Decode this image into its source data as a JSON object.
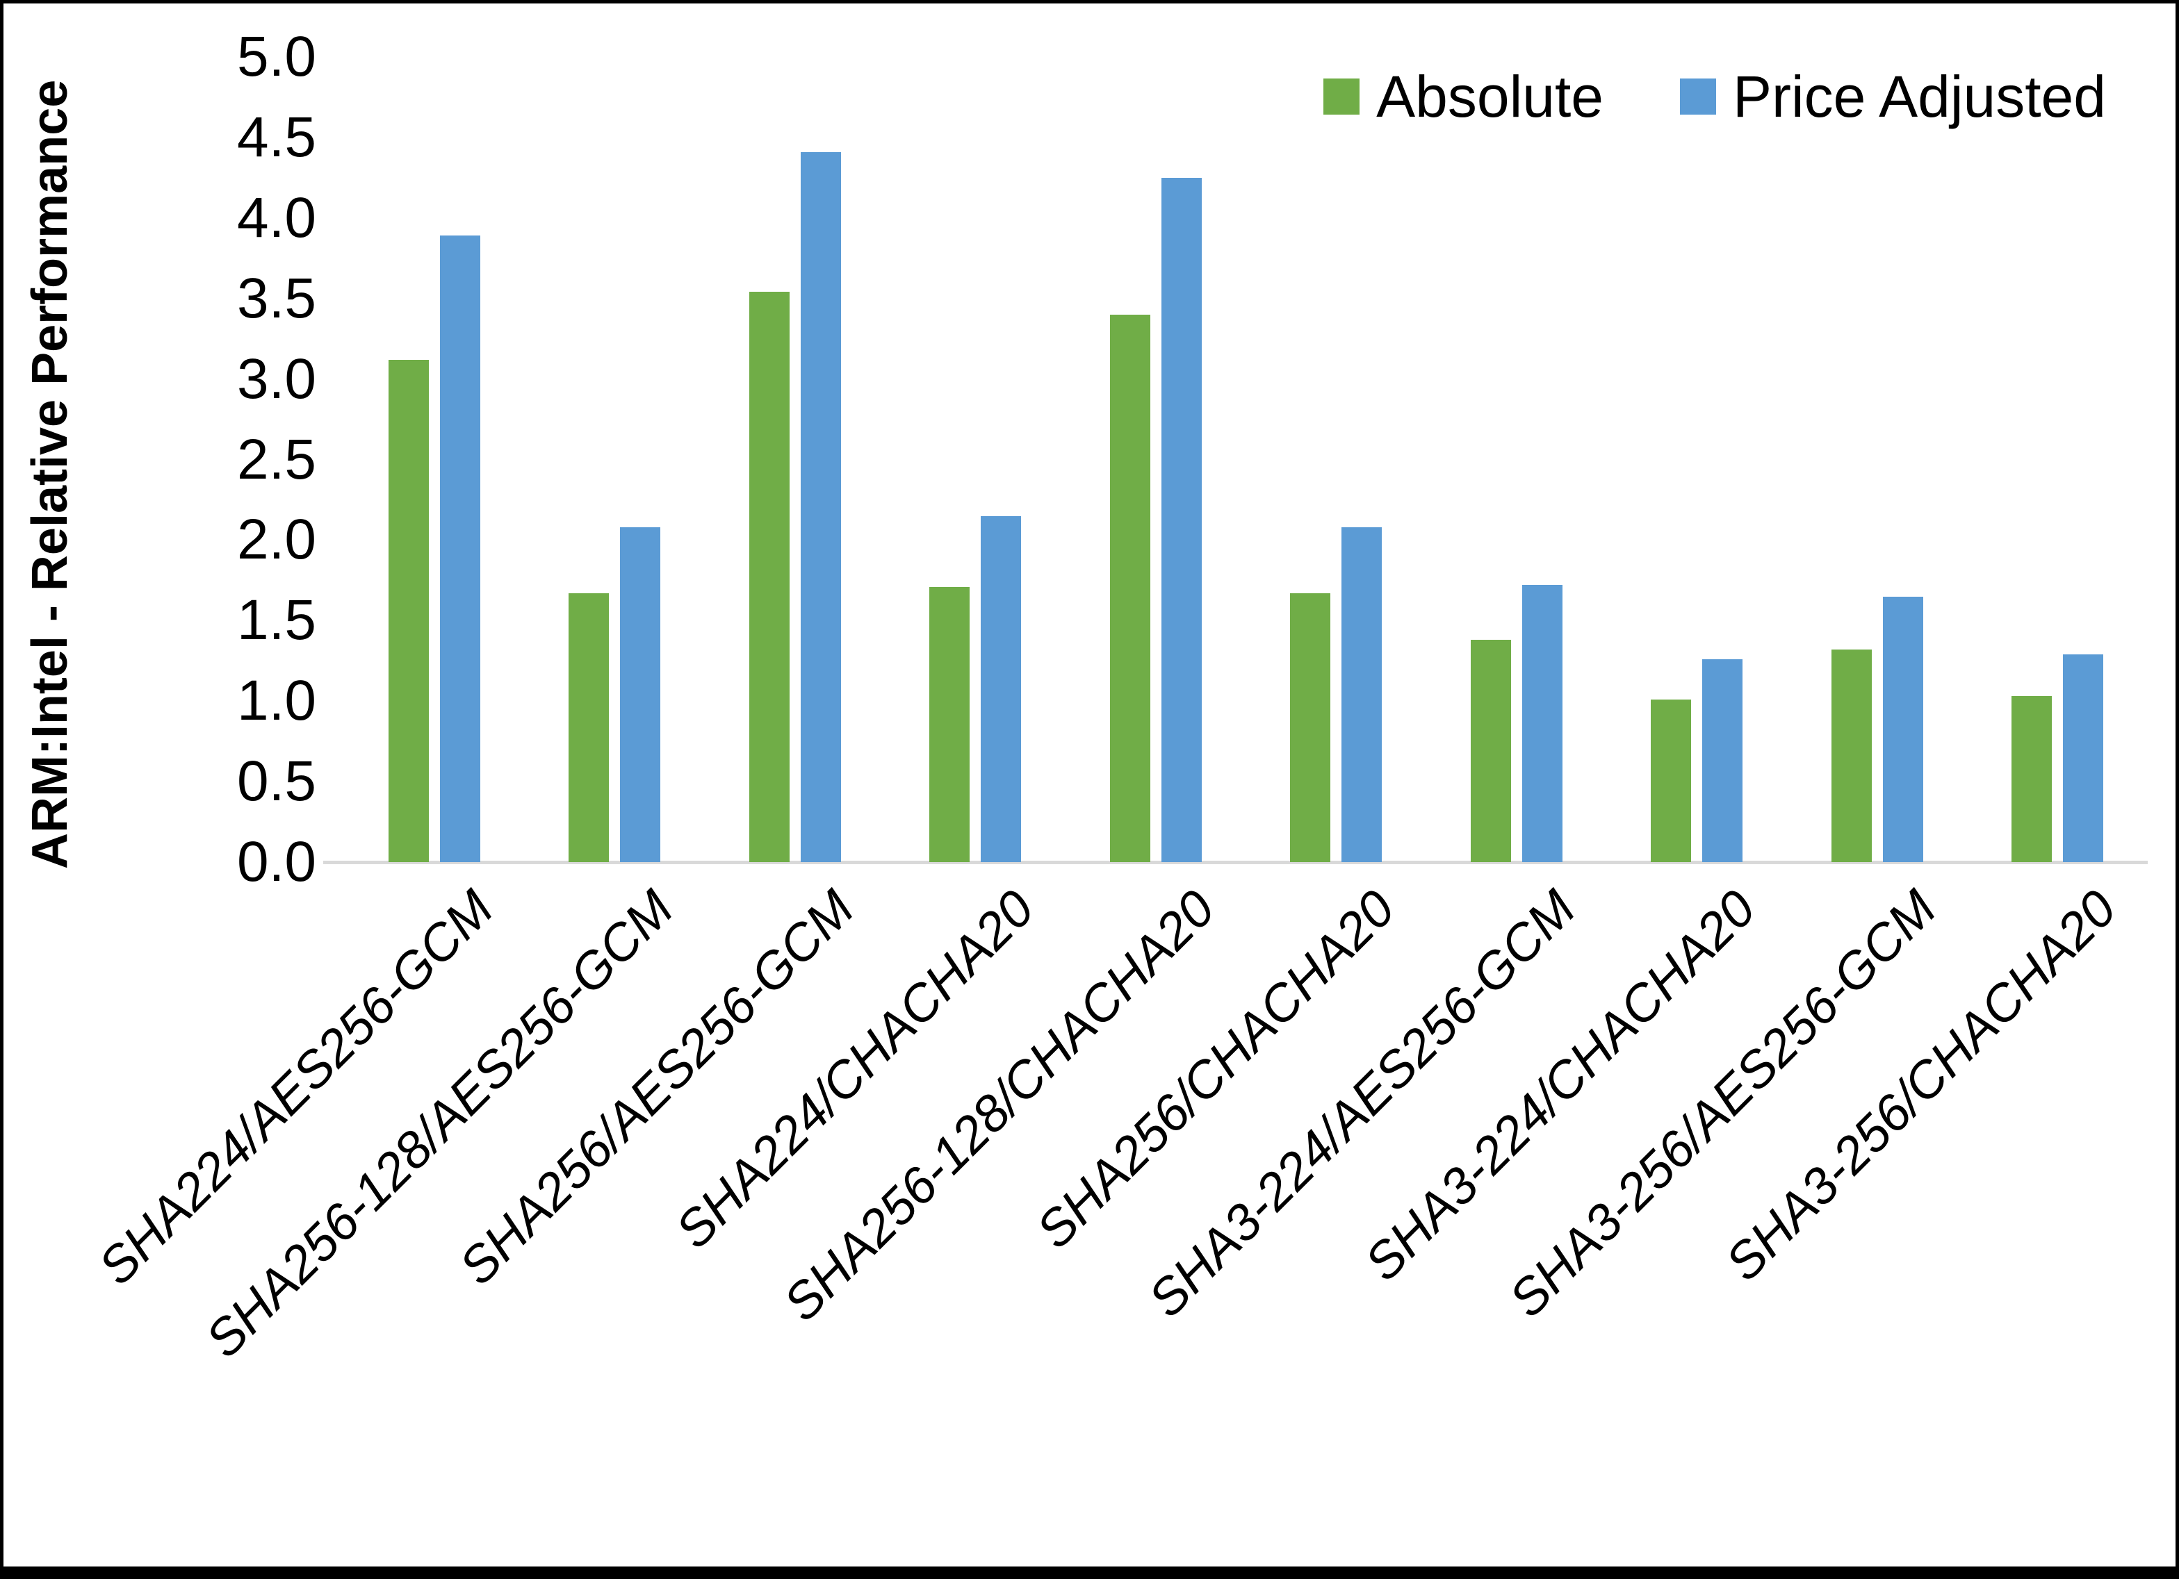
{
  "chart_data": {
    "type": "bar",
    "title": "",
    "xlabel": "",
    "ylabel": "ARM:Intel - Relative Performance",
    "ylim": [
      0,
      5
    ],
    "ytick_step": 0.5,
    "ytick_decimals": 1,
    "grid": false,
    "legend_position": "top-right",
    "categories": [
      "SHA224/AES256-GCM",
      "SHA256-128/AES256-GCM",
      "SHA256/AES256-GCM",
      "SHA224/CHACHA20",
      "SHA256-128/CHACHA20",
      "SHA256/CHACHA20",
      "SHA3-224/AES256-GCM",
      "SHA3-224/CHACHA20",
      "SHA3-256/AES256-GCM",
      "SHA3-256/CHACHA20"
    ],
    "series": [
      {
        "name": "Absolute",
        "color": "#70AD47",
        "values": [
          3.12,
          1.67,
          3.54,
          1.71,
          3.4,
          1.67,
          1.38,
          1.01,
          1.32,
          1.03
        ]
      },
      {
        "name": "Price Adjusted",
        "color": "#5B9BD5",
        "values": [
          3.89,
          2.08,
          4.41,
          2.15,
          4.25,
          2.08,
          1.72,
          1.26,
          1.65,
          1.29
        ]
      }
    ]
  },
  "colors": {
    "background": "#FFFFFF",
    "frame_border": "#000000",
    "axis_line": "#D9D9D9",
    "text": "#000000"
  }
}
